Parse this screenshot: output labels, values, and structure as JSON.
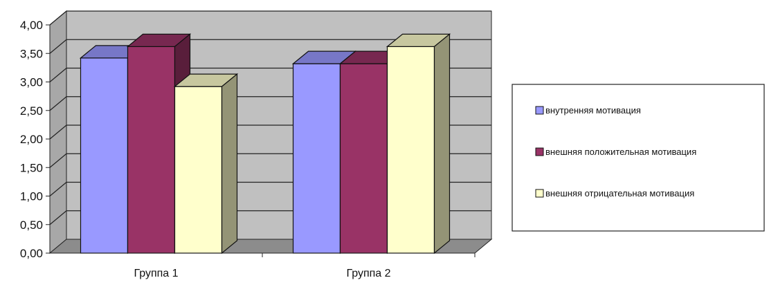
{
  "chart_data": {
    "type": "bar",
    "title": "",
    "xlabel": "",
    "ylabel": "",
    "categories": [
      "Группа 1",
      "Группа 2"
    ],
    "series": [
      {
        "name": "внутренняя мотивация",
        "values": [
          3.42,
          3.32
        ],
        "color": "#9999ff"
      },
      {
        "name": "внешняя положительная мотивация",
        "values": [
          3.62,
          3.32
        ],
        "color": "#993366"
      },
      {
        "name": "внешняя отрицательная мотивация",
        "values": [
          2.92,
          3.62
        ],
        "color": "#ffffcc"
      }
    ],
    "ylim": [
      0,
      4
    ],
    "yticks": [
      "0,00",
      "0,50",
      "1,00",
      "1,50",
      "2,00",
      "2,50",
      "3,00",
      "3,50",
      "4,00"
    ],
    "grid": true,
    "legend_position": "right",
    "style": "3d-clustered-column",
    "wall_color": "#c0c0c0"
  }
}
